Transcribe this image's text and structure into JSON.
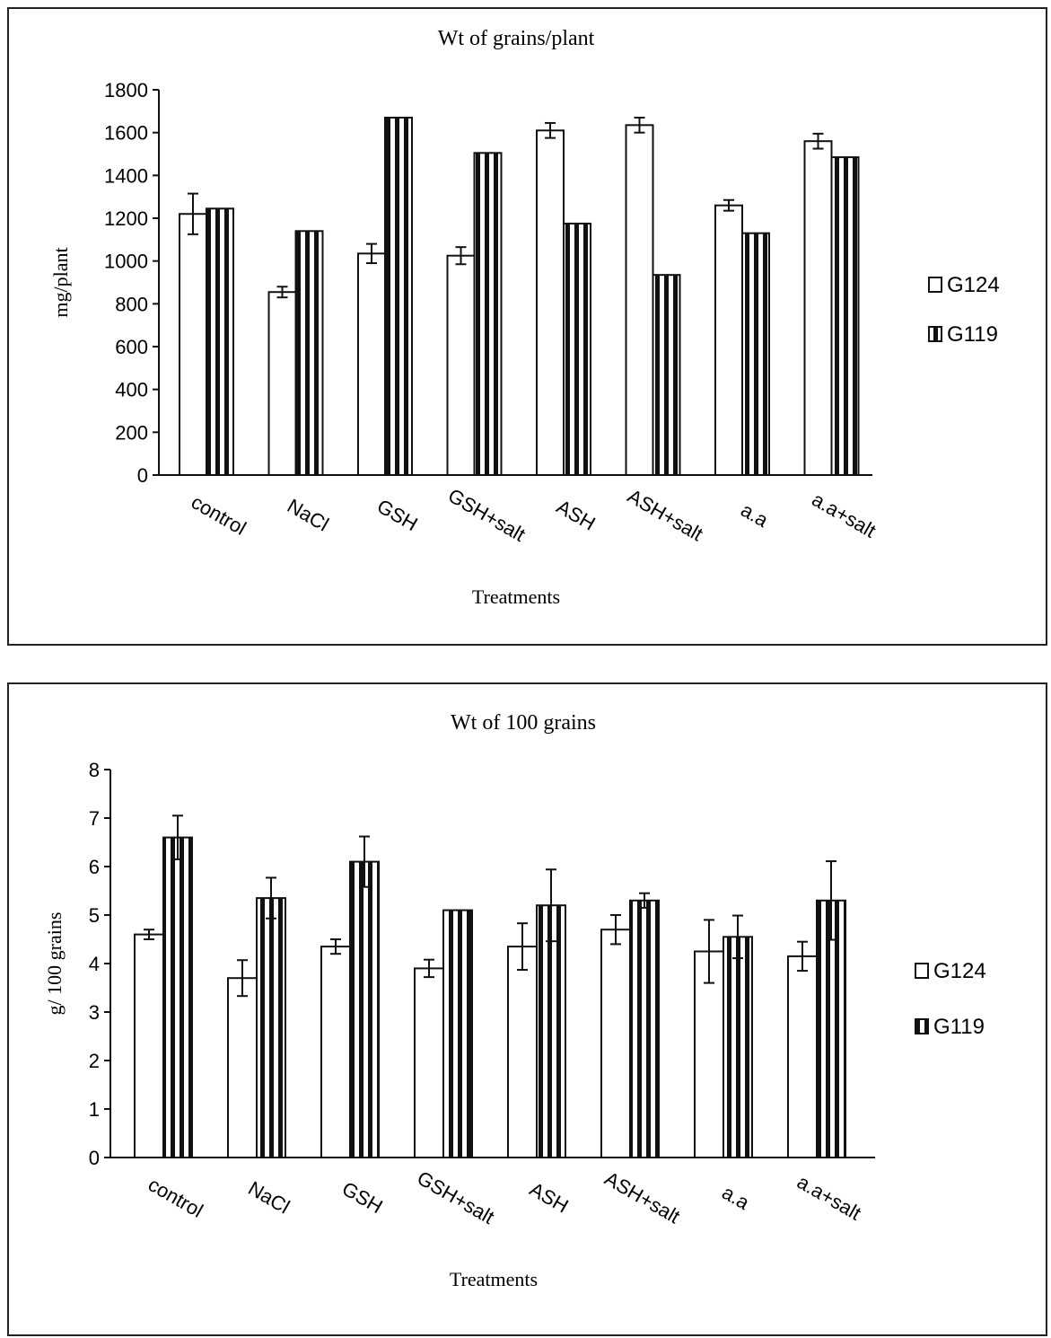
{
  "chart_data": [
    {
      "type": "bar",
      "title": "Wt of grains/plant",
      "xlabel": "Treatments",
      "ylabel": "mg/plant",
      "ylim": [
        0,
        1800
      ],
      "yticks": [
        0,
        200,
        400,
        600,
        800,
        1000,
        1200,
        1400,
        1600,
        1800
      ],
      "categories": [
        "control",
        "NaCl",
        "GSH",
        "GSH+salt",
        "ASH",
        "ASH+salt",
        "a.a",
        "a.a+salt"
      ],
      "legend_position": "right",
      "series": [
        {
          "name": "G124",
          "values": [
            1220,
            855,
            1035,
            1025,
            1610,
            1635,
            1260,
            1560
          ],
          "errors": [
            95,
            25,
            45,
            40,
            35,
            35,
            25,
            35
          ]
        },
        {
          "name": "G119",
          "values": [
            1245,
            1140,
            1670,
            1505,
            1175,
            935,
            1130,
            1485
          ],
          "errors": [
            0,
            0,
            0,
            0,
            0,
            0,
            0,
            0
          ]
        }
      ]
    },
    {
      "type": "bar",
      "title": "Wt of 100 grains",
      "xlabel": "Treatments",
      "ylabel": "g/ 100 grains",
      "ylim": [
        0,
        8
      ],
      "yticks": [
        0,
        1,
        2,
        3,
        4,
        5,
        6,
        7,
        8
      ],
      "categories": [
        "control",
        "NaCl",
        "GSH",
        "GSH+salt",
        "ASH",
        "ASH+salt",
        "a.a",
        "a.a+salt"
      ],
      "legend_position": "right",
      "series": [
        {
          "name": "G124",
          "values": [
            4.6,
            3.7,
            4.35,
            3.9,
            4.35,
            4.7,
            4.25,
            4.15
          ],
          "errors": [
            0.1,
            0.37,
            0.15,
            0.18,
            0.48,
            0.3,
            0.65,
            0.3
          ]
        },
        {
          "name": "G119",
          "values": [
            6.6,
            5.35,
            6.1,
            5.1,
            5.2,
            5.3,
            4.55,
            5.3
          ],
          "errors": [
            0.45,
            0.42,
            0.52,
            0,
            0.74,
            0.15,
            0.44,
            0.81
          ]
        }
      ]
    }
  ]
}
